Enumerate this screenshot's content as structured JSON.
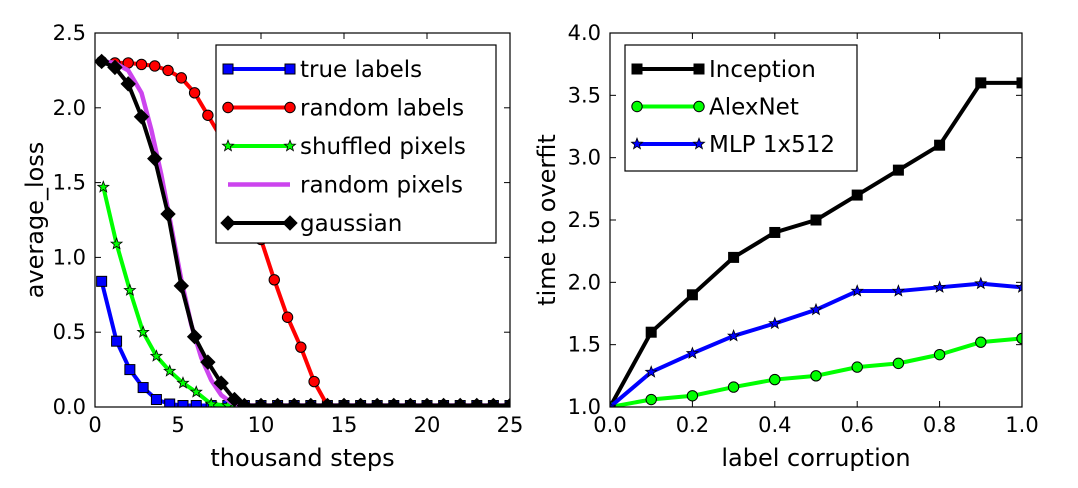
{
  "chart_data": [
    {
      "type": "line",
      "xlabel": "thousand steps",
      "ylabel": "average_loss",
      "xlim": [
        0,
        25
      ],
      "ylim": [
        0,
        2.5
      ],
      "xticks": [
        "0",
        "5",
        "10",
        "15",
        "20",
        "25"
      ],
      "yticks": [
        "0.0",
        "0.5",
        "1.0",
        "1.5",
        "2.0",
        "2.5"
      ],
      "legend_placement": "upper-right",
      "grid": false,
      "series": [
        {
          "name": "true labels",
          "color": "#0000ff",
          "marker": "square",
          "x": [
            0.4,
            1.3,
            2.1,
            2.9,
            3.7,
            4.5,
            5.3,
            6.1,
            7,
            8,
            9,
            10,
            11,
            12,
            13,
            14,
            15,
            16,
            17,
            18,
            19,
            20,
            21,
            22,
            23,
            24,
            25
          ],
          "y": [
            0.84,
            0.44,
            0.25,
            0.13,
            0.05,
            0.02,
            0.01,
            0.01,
            0.01,
            0.01,
            0.01,
            0.01,
            0.01,
            0.01,
            0.01,
            0.01,
            0.01,
            0.01,
            0.01,
            0.01,
            0.01,
            0.01,
            0.01,
            0.01,
            0.01,
            0.01,
            0.01
          ]
        },
        {
          "name": "random labels",
          "color": "#ff0000",
          "marker": "circle",
          "x": [
            0.4,
            1.2,
            2.0,
            2.8,
            3.6,
            4.4,
            5.2,
            6.0,
            6.8,
            7.6,
            8.4,
            9.2,
            10.0,
            10.8,
            11.6,
            12.4,
            13.2,
            14,
            15,
            16,
            17,
            18,
            19,
            20,
            21,
            22,
            23,
            24,
            25
          ],
          "y": [
            2.31,
            2.3,
            2.3,
            2.29,
            2.28,
            2.25,
            2.2,
            2.1,
            1.95,
            1.8,
            1.6,
            1.4,
            1.12,
            0.85,
            0.6,
            0.4,
            0.17,
            0.01,
            0.01,
            0.01,
            0.01,
            0.01,
            0.01,
            0.01,
            0.01,
            0.01,
            0.01,
            0.01,
            0.01
          ]
        },
        {
          "name": "shuffled pixels",
          "color": "#00ff00",
          "marker": "star",
          "x": [
            0.5,
            1.3,
            2.1,
            2.9,
            3.7,
            4.5,
            5.3,
            6.1,
            7,
            8,
            9,
            10,
            11,
            12,
            13,
            14,
            15,
            16,
            17,
            18,
            19,
            20,
            21,
            22,
            23,
            24,
            25
          ],
          "y": [
            1.47,
            1.09,
            0.78,
            0.5,
            0.34,
            0.24,
            0.16,
            0.1,
            0.02,
            0.01,
            0.01,
            0.01,
            0.01,
            0.01,
            0.01,
            0.01,
            0.01,
            0.01,
            0.01,
            0.01,
            0.01,
            0.01,
            0.01,
            0.01,
            0.01,
            0.01,
            0.01
          ]
        },
        {
          "name": "random pixels",
          "color": "#cc44ee",
          "marker": "none",
          "x": [
            0.4,
            1.2,
            2.0,
            2.8,
            3.4,
            4.0,
            4.6,
            5.2,
            5.8,
            6.4,
            7.0,
            7.6,
            8.2,
            8.8,
            9.5,
            10,
            25
          ],
          "y": [
            2.31,
            2.3,
            2.25,
            2.1,
            1.85,
            1.55,
            1.2,
            0.85,
            0.55,
            0.33,
            0.18,
            0.08,
            0.03,
            0.01,
            0.01,
            0.01,
            0.01
          ]
        },
        {
          "name": "gaussian",
          "color": "#000000",
          "marker": "diamond",
          "x": [
            0.4,
            1.2,
            2.0,
            2.8,
            3.6,
            4.4,
            5.2,
            6.0,
            6.8,
            7.6,
            8.4,
            9,
            10,
            11,
            12,
            13,
            14,
            15,
            16,
            17,
            18,
            19,
            20,
            21,
            22,
            23,
            24,
            25
          ],
          "y": [
            2.31,
            2.27,
            2.16,
            1.94,
            1.66,
            1.29,
            0.81,
            0.47,
            0.3,
            0.16,
            0.05,
            0.01,
            0.01,
            0.01,
            0.01,
            0.01,
            0.01,
            0.01,
            0.01,
            0.01,
            0.01,
            0.01,
            0.01,
            0.01,
            0.01,
            0.01,
            0.01,
            0.01
          ]
        }
      ]
    },
    {
      "type": "line",
      "xlabel": "label corruption",
      "ylabel": "time to overfit",
      "xlim": [
        0,
        1.0
      ],
      "ylim": [
        1.0,
        4.0
      ],
      "xticks": [
        "0.0",
        "0.2",
        "0.4",
        "0.6",
        "0.8",
        "1.0"
      ],
      "yticks": [
        "1.0",
        "1.5",
        "2.0",
        "2.5",
        "3.0",
        "3.5",
        "4.0"
      ],
      "legend_placement": "upper-left",
      "grid": false,
      "series": [
        {
          "name": "Inception",
          "color": "#000000",
          "marker": "square",
          "x": [
            0,
            0.1,
            0.2,
            0.3,
            0.4,
            0.5,
            0.6,
            0.7,
            0.8,
            0.9,
            1.0
          ],
          "y": [
            1.0,
            1.6,
            1.9,
            2.2,
            2.4,
            2.5,
            2.7,
            2.9,
            3.1,
            3.6,
            3.6
          ]
        },
        {
          "name": "AlexNet",
          "color": "#00ff00",
          "marker": "circle",
          "x": [
            0,
            0.1,
            0.2,
            0.3,
            0.4,
            0.5,
            0.6,
            0.7,
            0.8,
            0.9,
            1.0
          ],
          "y": [
            1.0,
            1.06,
            1.09,
            1.16,
            1.22,
            1.25,
            1.32,
            1.35,
            1.42,
            1.52,
            1.55
          ]
        },
        {
          "name": "MLP 1x512",
          "color": "#0000ff",
          "marker": "star",
          "x": [
            0,
            0.1,
            0.2,
            0.3,
            0.4,
            0.5,
            0.6,
            0.7,
            0.8,
            0.9,
            1.0
          ],
          "y": [
            1.0,
            1.28,
            1.43,
            1.57,
            1.67,
            1.78,
            1.93,
            1.93,
            1.96,
            1.99,
            1.96
          ]
        }
      ]
    }
  ]
}
